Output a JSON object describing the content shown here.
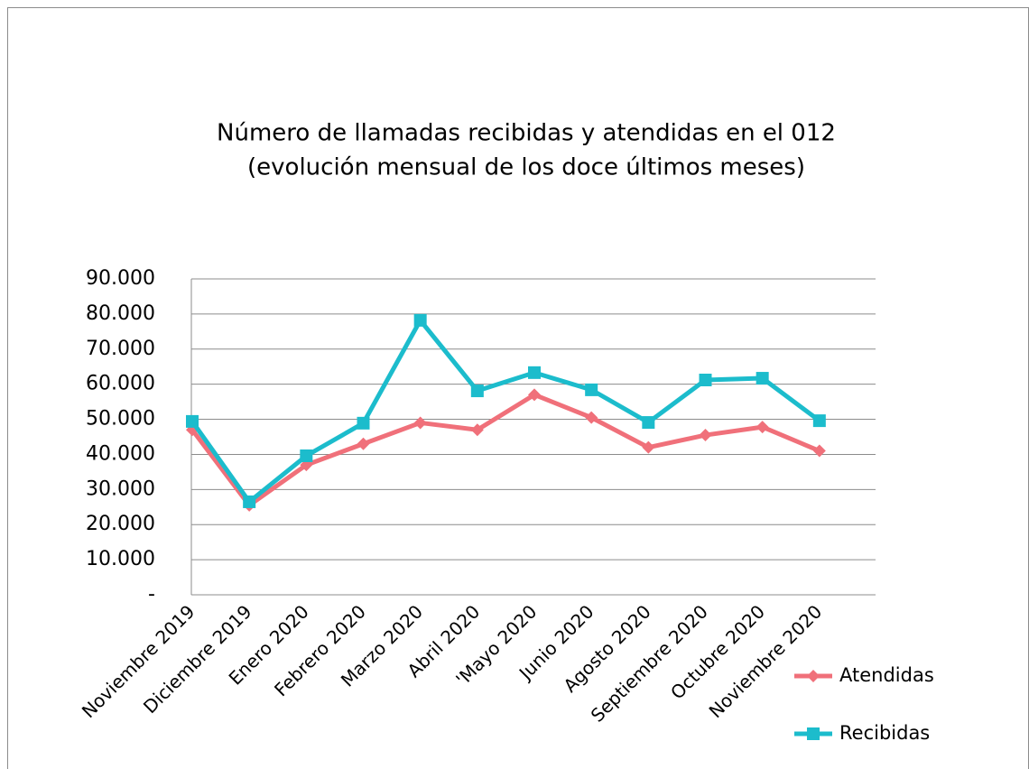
{
  "chart_data": {
    "type": "line",
    "title": [
      "Número de llamadas recibidas y atendidas en el 012",
      "(evolución mensual de los doce últimos meses)"
    ],
    "categories": [
      "Noviembre 2019",
      "Diciembre 2019",
      "Enero 2020",
      "Febrero 2020",
      "Marzo 2020",
      "Abril 2020",
      "'Mayo 2020",
      "Junio 2020",
      "Agosto 2020",
      "Septiembre 2020",
      "Octubre 2020",
      "Noviembre 2020"
    ],
    "series": [
      {
        "name": "Atendidas",
        "color": "#f0707a",
        "marker": "diamond",
        "values": [
          47000,
          25500,
          37000,
          43000,
          49000,
          47000,
          57000,
          50500,
          42000,
          45500,
          47800,
          41000
        ]
      },
      {
        "name": "Recibidas",
        "color": "#1cbccc",
        "marker": "square",
        "values": [
          49400,
          26500,
          39600,
          48900,
          78200,
          58100,
          63300,
          58400,
          49100,
          61200,
          61700,
          49600
        ]
      }
    ],
    "ylim": [
      0,
      90000
    ],
    "yticks": [
      {
        "value": 0,
        "label": "-"
      },
      {
        "value": 10000,
        "label": "10.000"
      },
      {
        "value": 20000,
        "label": "20.000"
      },
      {
        "value": 30000,
        "label": "30.000"
      },
      {
        "value": 40000,
        "label": "40.000"
      },
      {
        "value": 50000,
        "label": "50.000"
      },
      {
        "value": 60000,
        "label": "60.000"
      },
      {
        "value": 70000,
        "label": "70.000"
      },
      {
        "value": 80000,
        "label": "80.000"
      },
      {
        "value": 90000,
        "label": "90.000"
      }
    ],
    "grid": true,
    "legend": "right"
  }
}
